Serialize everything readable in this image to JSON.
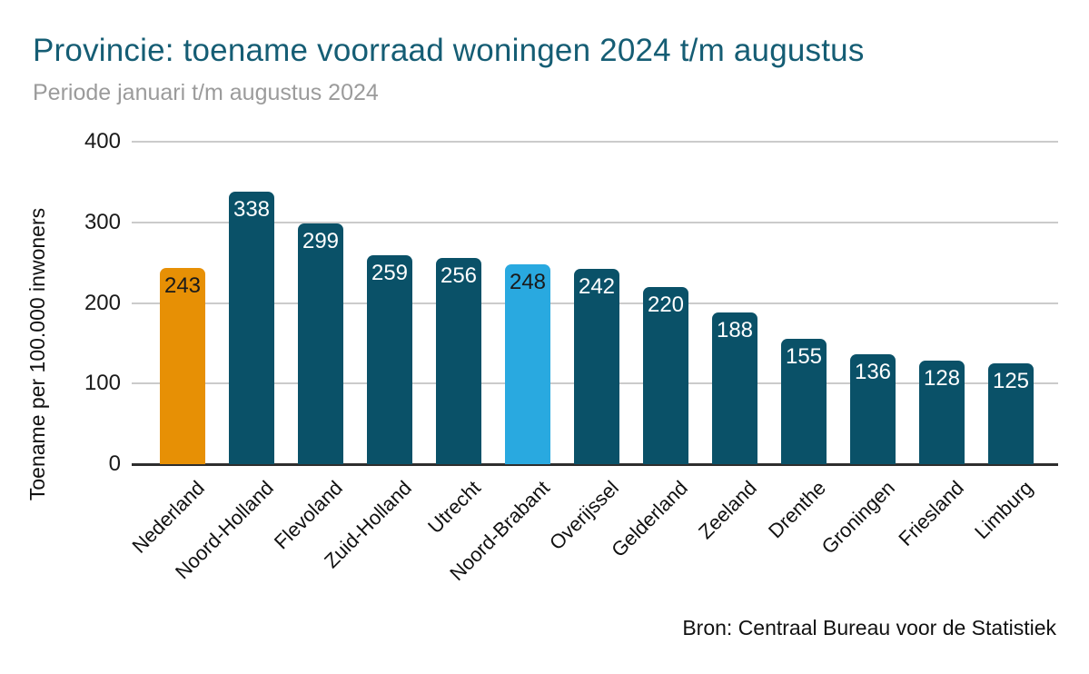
{
  "header": {
    "title": "Provincie: toename voorraad woningen 2024 t/m augustus",
    "subtitle": "Periode januari t/m augustus 2024"
  },
  "footer": {
    "source": "Bron: Centraal Bureau voor de Statistiek"
  },
  "chart_data": {
    "type": "bar",
    "title": "Provincie: toename voorraad woningen 2024 t/m augustus",
    "subtitle": "Periode januari t/m augustus 2024",
    "xlabel": "",
    "ylabel": "Toename per 100.000 inwoners",
    "ylim": [
      0,
      400
    ],
    "yticks": [
      0,
      100,
      200,
      300,
      400
    ],
    "grid": true,
    "legend": false,
    "source": "Bron: Centraal Bureau voor de Statistiek",
    "categories": [
      "Nederland",
      "Noord-Holland",
      "Flevoland",
      "Zuid-Holland",
      "Utrecht",
      "Noord-Brabant",
      "Overijssel",
      "Gelderland",
      "Zeeland",
      "Drenthe",
      "Groningen",
      "Friesland",
      "Limburg"
    ],
    "values": [
      243,
      338,
      299,
      259,
      256,
      248,
      242,
      220,
      188,
      155,
      136,
      128,
      125
    ],
    "bar_colors": [
      "#e79005",
      "#0a5168",
      "#0a5168",
      "#0a5168",
      "#0a5168",
      "#29a9e0",
      "#0a5168",
      "#0a5168",
      "#0a5168",
      "#0a5168",
      "#0a5168",
      "#0a5168",
      "#0a5168"
    ],
    "value_label_colors": [
      "#1a1a1a",
      "#ffffff",
      "#ffffff",
      "#ffffff",
      "#ffffff",
      "#1a1a1a",
      "#ffffff",
      "#ffffff",
      "#ffffff",
      "#ffffff",
      "#ffffff",
      "#ffffff",
      "#ffffff"
    ],
    "colors": {
      "default_bar": "#0a5168",
      "highlight_nederland": "#e79005",
      "highlight_noord_brabant": "#29a9e0",
      "gridline": "#cbcbcb",
      "axis_line": "#2e2e2e",
      "title": "#155d74",
      "subtitle": "#9b9b9b"
    }
  }
}
